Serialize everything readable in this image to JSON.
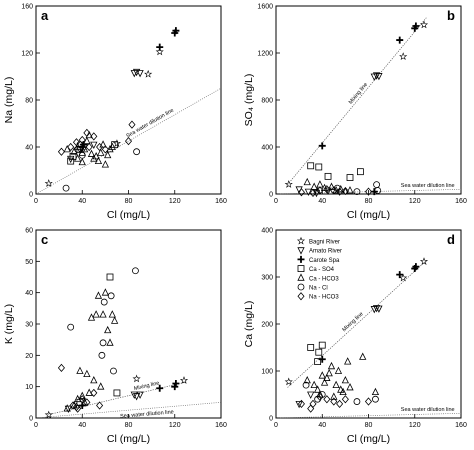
{
  "chart_data": [
    {
      "type": "scatter",
      "panel": "a",
      "xlabel": "Cl (mg/L)",
      "ylabel": "Na (mg/L)",
      "xlim": [
        0,
        160
      ],
      "ylim": [
        0,
        160
      ],
      "xticks": [
        "0",
        "40",
        "80",
        "120",
        "160"
      ],
      "yticks": [
        "0",
        "40",
        "80",
        "120",
        "160"
      ],
      "annotations": [
        "Sea water dilution line"
      ],
      "lines": [
        {
          "kind": "dilution",
          "from": [
            0,
            0
          ],
          "to": [
            160,
            90
          ]
        }
      ],
      "series": [
        {
          "name": "Bagni River",
          "marker": "star",
          "points": [
            [
              11,
              9
            ],
            [
              107,
              121
            ],
            [
              70,
              43
            ],
            [
              97,
              102
            ]
          ]
        },
        {
          "name": "Amato River",
          "marker": "tri-down",
          "points": [
            [
              85,
              103
            ],
            [
              87,
              104
            ],
            [
              90,
              103
            ],
            [
              30,
              30
            ],
            [
              38,
              38
            ],
            [
              42,
              40
            ],
            [
              50,
              42
            ]
          ]
        },
        {
          "name": "Carote Spa",
          "marker": "plus",
          "points": [
            [
              107,
              125
            ],
            [
              120,
              137
            ],
            [
              121,
              139
            ],
            [
              40,
              40
            ],
            [
              41,
              42
            ]
          ]
        },
        {
          "name": "Ca - SO4",
          "marker": "square",
          "points": [
            [
              30,
              28
            ],
            [
              32,
              32
            ],
            [
              68,
              42
            ],
            [
              38,
              38
            ]
          ]
        },
        {
          "name": "Ca - HCO3",
          "marker": "triangle",
          "points": [
            [
              27,
              38
            ],
            [
              33,
              36
            ],
            [
              36,
              40
            ],
            [
              40,
              35
            ],
            [
              42,
              38
            ],
            [
              44,
              45
            ],
            [
              46,
              50
            ],
            [
              48,
              34
            ],
            [
              50,
              30
            ],
            [
              52,
              32
            ],
            [
              54,
              28
            ],
            [
              56,
              35
            ],
            [
              58,
              42
            ],
            [
              60,
              25
            ],
            [
              62,
              33
            ],
            [
              64,
              38
            ],
            [
              66,
              40
            ],
            [
              36,
              30
            ],
            [
              40,
              27
            ]
          ]
        },
        {
          "name": "Na - Cl",
          "marker": "circle",
          "points": [
            [
              26,
              5
            ],
            [
              36,
              38
            ],
            [
              38,
              42
            ],
            [
              40,
              33
            ],
            [
              87,
              36
            ]
          ]
        },
        {
          "name": "Na - HCO3",
          "marker": "diamond",
          "points": [
            [
              22,
              36
            ],
            [
              35,
              44
            ],
            [
              40,
              46
            ],
            [
              44,
              52
            ],
            [
              50,
              49
            ],
            [
              55,
              40
            ],
            [
              60,
              38
            ],
            [
              80,
              45
            ],
            [
              83,
              59
            ],
            [
              30,
              40
            ],
            [
              46,
              40
            ]
          ]
        }
      ]
    },
    {
      "type": "scatter",
      "panel": "b",
      "xlabel": "Cl (mg/L)",
      "ylabel": "SO₄ (mg/L)",
      "xlim": [
        0,
        160
      ],
      "ylim": [
        0,
        1600
      ],
      "xticks": [
        "0",
        "40",
        "80",
        "120",
        "160"
      ],
      "yticks": [
        "0",
        "400",
        "800",
        "1200",
        "1600"
      ],
      "annotations": [
        "Mixing line",
        "Sea water dilution line"
      ],
      "lines": [
        {
          "kind": "mixing",
          "from": [
            10,
            80
          ],
          "to": [
            130,
            1500
          ]
        },
        {
          "kind": "dilution",
          "from": [
            0,
            0
          ],
          "to": [
            160,
            40
          ]
        }
      ],
      "series": [
        {
          "name": "Bagni River",
          "marker": "star",
          "points": [
            [
              11,
              82
            ],
            [
              110,
              1170
            ],
            [
              128,
              1440
            ]
          ]
        },
        {
          "name": "Amato River",
          "marker": "tri-down",
          "points": [
            [
              85,
              1000
            ],
            [
              87,
              1010
            ],
            [
              89,
              1005
            ],
            [
              20,
              40
            ],
            [
              28,
              20
            ],
            [
              35,
              10
            ],
            [
              45,
              30
            ]
          ]
        },
        {
          "name": "Carote Spa",
          "marker": "plus",
          "points": [
            [
              40,
              410
            ],
            [
              107,
              1310
            ],
            [
              120,
              1410
            ],
            [
              121,
              1430
            ],
            [
              85,
              20
            ]
          ]
        },
        {
          "name": "Ca - SO4",
          "marker": "square",
          "points": [
            [
              30,
              240
            ],
            [
              37,
              230
            ],
            [
              45,
              150
            ],
            [
              64,
              140
            ],
            [
              73,
              190
            ]
          ]
        },
        {
          "name": "Ca - HCO3",
          "marker": "triangle",
          "points": [
            [
              27,
              100
            ],
            [
              33,
              60
            ],
            [
              38,
              80
            ],
            [
              42,
              50
            ],
            [
              48,
              60
            ],
            [
              52,
              30
            ],
            [
              56,
              40
            ],
            [
              60,
              20
            ],
            [
              64,
              30
            ],
            [
              36,
              20
            ]
          ]
        },
        {
          "name": "Na - Cl",
          "marker": "circle",
          "points": [
            [
              53,
              50
            ],
            [
              87,
              80
            ],
            [
              88,
              30
            ],
            [
              70,
              20
            ]
          ]
        },
        {
          "name": "Na - HCO3",
          "marker": "diamond",
          "points": [
            [
              22,
              15
            ],
            [
              32,
              10
            ],
            [
              38,
              30
            ],
            [
              44,
              40
            ],
            [
              50,
              30
            ],
            [
              55,
              20
            ],
            [
              60,
              25
            ],
            [
              80,
              20
            ]
          ]
        }
      ]
    },
    {
      "type": "scatter",
      "panel": "c",
      "xlabel": "Cl (mg/L)",
      "ylabel": "K (mg/L)",
      "xlim": [
        0,
        160
      ],
      "ylim": [
        0,
        60
      ],
      "xticks": [
        "0",
        "40",
        "80",
        "120",
        "160"
      ],
      "yticks": [
        "0",
        "10",
        "20",
        "30",
        "40",
        "50",
        "60"
      ],
      "annotations": [
        "Mixing line",
        "Sea water dilution line"
      ],
      "lines": [
        {
          "kind": "mixing",
          "from": [
            10,
            1
          ],
          "to": [
            130,
            11.5
          ]
        },
        {
          "kind": "dilution",
          "from": [
            0,
            0
          ],
          "to": [
            160,
            5
          ]
        }
      ],
      "series": [
        {
          "name": "Bagni River",
          "marker": "star",
          "points": [
            [
              11,
              1
            ],
            [
              87,
              12.5
            ],
            [
              128,
              12
            ]
          ]
        },
        {
          "name": "Amato River",
          "marker": "tri-down",
          "points": [
            [
              85,
              7.5
            ],
            [
              87,
              7
            ],
            [
              90,
              7.5
            ],
            [
              28,
              3
            ]
          ]
        },
        {
          "name": "Carote Spa",
          "marker": "plus",
          "points": [
            [
              107,
              9.5
            ],
            [
              120,
              10
            ],
            [
              121,
              11
            ],
            [
              40,
              4
            ]
          ]
        },
        {
          "name": "Ca - SO4",
          "marker": "square",
          "points": [
            [
              38,
              5
            ],
            [
              64,
              45
            ],
            [
              70,
              8
            ]
          ]
        },
        {
          "name": "Ca - HCO3",
          "marker": "triangle",
          "points": [
            [
              27,
              3
            ],
            [
              33,
              4
            ],
            [
              36,
              6
            ],
            [
              38,
              15
            ],
            [
              40,
              7
            ],
            [
              42,
              5
            ],
            [
              44,
              14
            ],
            [
              46,
              8
            ],
            [
              48,
              32
            ],
            [
              50,
              12
            ],
            [
              52,
              33
            ],
            [
              54,
              39
            ],
            [
              56,
              10
            ],
            [
              58,
              33
            ],
            [
              60,
              40
            ],
            [
              62,
              28
            ],
            [
              64,
              24
            ],
            [
              66,
              33
            ],
            [
              68,
              31
            ]
          ]
        },
        {
          "name": "Na - Cl",
          "marker": "circle",
          "points": [
            [
              30,
              29
            ],
            [
              57,
              20
            ],
            [
              58,
              24
            ],
            [
              59,
              37
            ],
            [
              65,
              39
            ],
            [
              86,
              47
            ],
            [
              67,
              15
            ]
          ]
        },
        {
          "name": "Na - HCO3",
          "marker": "diamond",
          "points": [
            [
              22,
              16
            ],
            [
              32,
              4
            ],
            [
              36,
              3
            ],
            [
              40,
              6
            ],
            [
              44,
              5
            ],
            [
              50,
              8
            ],
            [
              55,
              4
            ],
            [
              35,
              3.5
            ]
          ]
        }
      ]
    },
    {
      "type": "scatter",
      "panel": "d",
      "xlabel": "Cl (mg/L)",
      "ylabel": "Ca (mg/L)",
      "xlim": [
        0,
        160
      ],
      "ylim": [
        0,
        400
      ],
      "xticks": [
        "0",
        "40",
        "80",
        "120",
        "160"
      ],
      "yticks": [
        "0",
        "100",
        "200",
        "300",
        "400"
      ],
      "legend_position": "top-left",
      "annotations": [
        "Mixing line",
        "Sea water dilution line"
      ],
      "lines": [
        {
          "kind": "mixing",
          "from": [
            10,
            65
          ],
          "to": [
            130,
            335
          ]
        },
        {
          "kind": "dilution",
          "from": [
            0,
            0
          ],
          "to": [
            160,
            10
          ]
        }
      ],
      "series": [
        {
          "name": "Bagni River",
          "marker": "star",
          "points": [
            [
              11,
              77
            ],
            [
              110,
              298
            ],
            [
              128,
              333
            ]
          ]
        },
        {
          "name": "Amato River",
          "marker": "tri-down",
          "points": [
            [
              85,
              232
            ],
            [
              87,
              234
            ],
            [
              89,
              233
            ],
            [
              20,
              30
            ],
            [
              30,
              50
            ]
          ]
        },
        {
          "name": "Carote Spa",
          "marker": "plus",
          "points": [
            [
              107,
              305
            ],
            [
              120,
              318
            ],
            [
              121,
              322
            ],
            [
              40,
              125
            ]
          ]
        },
        {
          "name": "Ca - SO4",
          "marker": "square",
          "points": [
            [
              30,
              150
            ],
            [
              37,
              140
            ],
            [
              40,
              155
            ],
            [
              36,
              120
            ]
          ]
        },
        {
          "name": "Ca - HCO3",
          "marker": "triangle",
          "points": [
            [
              27,
              80
            ],
            [
              33,
              70
            ],
            [
              36,
              60
            ],
            [
              38,
              50
            ],
            [
              40,
              90
            ],
            [
              42,
              75
            ],
            [
              44,
              85
            ],
            [
              46,
              95
            ],
            [
              48,
              110
            ],
            [
              50,
              45
            ],
            [
              52,
              70
            ],
            [
              54,
              100
            ],
            [
              56,
              60
            ],
            [
              58,
              55
            ],
            [
              60,
              80
            ],
            [
              62,
              120
            ],
            [
              64,
              65
            ],
            [
              75,
              130
            ],
            [
              86,
              55
            ]
          ]
        },
        {
          "name": "Na - Cl",
          "marker": "circle",
          "points": [
            [
              26,
              70
            ],
            [
              36,
              40
            ],
            [
              40,
              50
            ],
            [
              70,
              35
            ],
            [
              86,
              40
            ]
          ]
        },
        {
          "name": "Na - HCO3",
          "marker": "diamond",
          "points": [
            [
              22,
              30
            ],
            [
              32,
              30
            ],
            [
              38,
              45
            ],
            [
              44,
              40
            ],
            [
              50,
              35
            ],
            [
              55,
              30
            ],
            [
              60,
              40
            ],
            [
              80,
              35
            ],
            [
              30,
              20
            ]
          ]
        }
      ]
    }
  ]
}
